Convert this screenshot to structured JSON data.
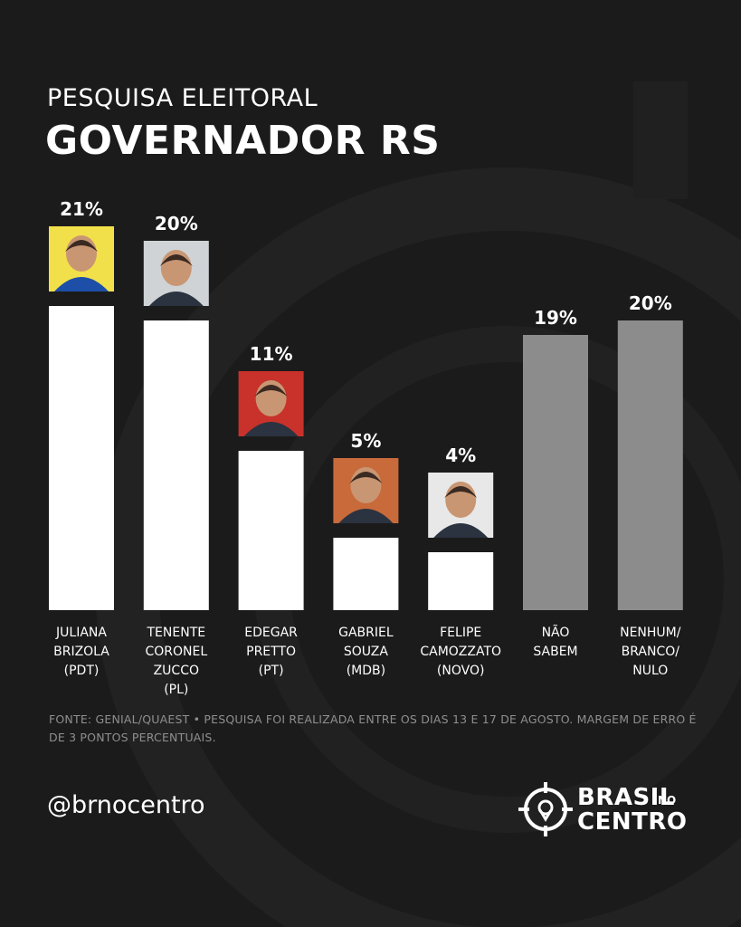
{
  "header": {
    "kicker": "PESQUISA ELEITORAL",
    "title": "GOVERNADOR RS"
  },
  "chart_data": {
    "type": "bar",
    "categories": [
      "JULIANA BRIZOLA (PDT)",
      "TENENTE CORONEL ZUCCO (PL)",
      "EDEGAR PRETTO (PT)",
      "GABRIEL SOUZA (MDB)",
      "FELIPE CAMOZZATO (NOVO)",
      "NÃO SABEM",
      "NENHUM/ BRANCO/ NULO"
    ],
    "category_lines": [
      [
        "JULIANA",
        "BRIZOLA",
        "(PDT)"
      ],
      [
        "TENENTE",
        "CORONEL",
        "ZUCCO",
        "(PL)"
      ],
      [
        "EDEGAR",
        "PRETTO",
        "(PT)"
      ],
      [
        "GABRIEL",
        "SOUZA",
        "(MDB)"
      ],
      [
        "FELIPE",
        "CAMOZZATO",
        "(NOVO)"
      ],
      [
        "NÃO",
        "SABEM"
      ],
      [
        "NENHUM/",
        "BRANCO/",
        "NULO"
      ]
    ],
    "values": [
      21,
      20,
      11,
      5,
      4,
      19,
      20
    ],
    "value_labels": [
      "21%",
      "20%",
      "11%",
      "5%",
      "4%",
      "19%",
      "20%"
    ],
    "has_photo": [
      true,
      true,
      true,
      true,
      true,
      false,
      false
    ],
    "photo_backgrounds": [
      "#f2e04a",
      "#cfd3d6",
      "#c8322b",
      "#c96a3a",
      "#e8e8e8"
    ],
    "colors": {
      "candidate": "#ffffff",
      "other": "#8c8c8c"
    },
    "ylim": [
      0,
      21
    ],
    "grid": false,
    "legend": "none"
  },
  "footer": {
    "source": "FONTE: GENIAL/QUAEST • PESQUISA FOI REALIZADA ENTRE OS DIAS 13 E 17 DE AGOSTO. MARGEM DE ERRO É DE 3 PONTOS PERCENTUAIS.",
    "handle": "@brnocentro",
    "logo_line1": "BRASIL",
    "logo_small": "NO",
    "logo_line2": "CENTRO"
  }
}
